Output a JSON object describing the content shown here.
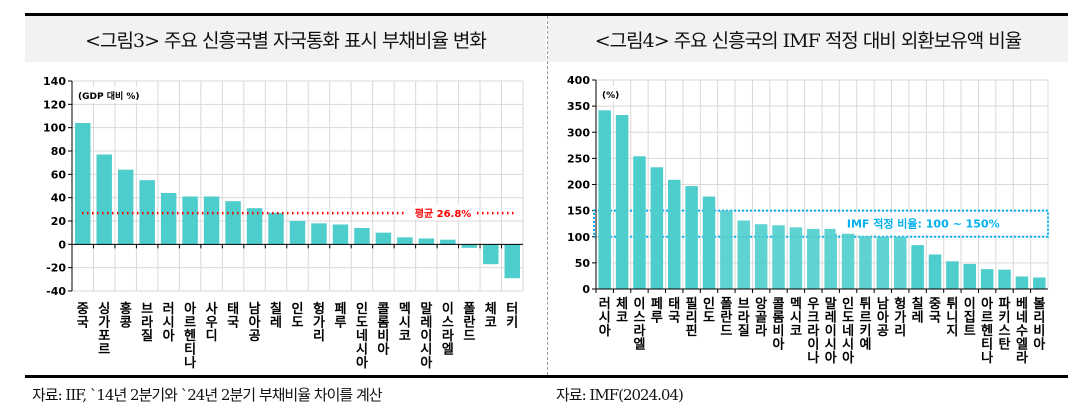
{
  "left": {
    "title": "<그림3> 주요 신흥국별 자국통화 표시 부채비율 변화",
    "source": "자료: IIF, `14년 2분기와 `24년 2분기 부채비율 차이를 계산"
  },
  "right": {
    "title": "<그림4> 주요 신흥국의 IMF 적정 대비 외환보유액 비율",
    "source": "자료: IMF(2024.04)"
  },
  "chart_data": [
    {
      "type": "bar",
      "unit_label": "(GDP 대비 %)",
      "categories": [
        "중국",
        "싱가포르",
        "홍콩",
        "브라질",
        "러시아",
        "아르헨티나",
        "사우디",
        "태국",
        "남아공",
        "칠레",
        "인도",
        "헝가리",
        "페루",
        "인도네시아",
        "콜롬비아",
        "멕시코",
        "말레이시아",
        "이스라엘",
        "폴란드",
        "체코",
        "터키"
      ],
      "values": [
        104,
        77,
        64,
        55,
        44,
        41,
        41,
        37,
        31,
        27,
        20,
        18,
        17,
        14,
        10,
        6,
        5,
        4,
        -3,
        -17,
        -29
      ],
      "ylim": [
        -40,
        140
      ],
      "yticks": [
        -40,
        -20,
        0,
        20,
        40,
        60,
        80,
        100,
        120,
        140
      ],
      "grid": true,
      "bar_color": "#4ecdcd",
      "reference_line": {
        "value": 26.8,
        "label": "평균 26.8%",
        "color": "#ff0000"
      }
    },
    {
      "type": "bar",
      "unit_label": "(%)",
      "categories": [
        "러시아",
        "체코",
        "이스라엘",
        "페루",
        "태국",
        "필리핀",
        "인도",
        "폴란드",
        "브라질",
        "앙골라",
        "콜롬비아",
        "멕시코",
        "우크라이나",
        "말레이시아",
        "인도네시아",
        "튀르키예",
        "남아공",
        "헝가리",
        "칠레",
        "중국",
        "튀니지",
        "이집트",
        "아르헨티나",
        "파키스탄",
        "베네수엘라",
        "볼리비아"
      ],
      "values": [
        342,
        333,
        254,
        233,
        209,
        197,
        177,
        150,
        131,
        124,
        122,
        118,
        115,
        115,
        112,
        101,
        100,
        100,
        84,
        66,
        53,
        48,
        38,
        37,
        24,
        22
      ],
      "ylim": [
        0,
        400
      ],
      "yticks": [
        0,
        50,
        100,
        150,
        200,
        250,
        300,
        350,
        400
      ],
      "grid": true,
      "bar_color": "#4ecdcd",
      "reference_band": {
        "from": 100,
        "to": 150,
        "label": "IMF 적정 비율: 100 ~ 150%",
        "color": "#00b0f0"
      }
    }
  ]
}
